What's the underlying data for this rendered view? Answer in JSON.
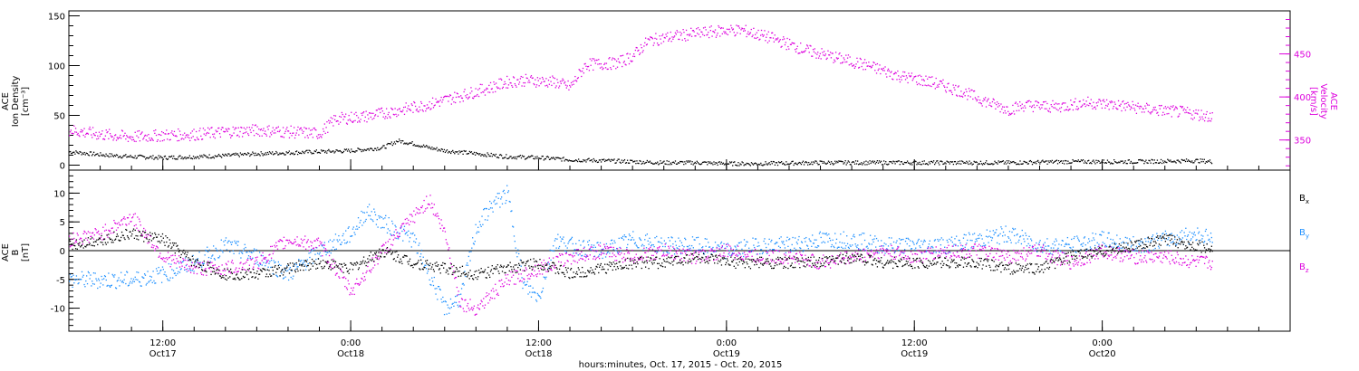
{
  "chart_data": [
    {
      "type": "scatter",
      "title": "",
      "xlabel": "hours:minutes, Oct. 17, 2015 - Oct. 20, 2015",
      "ylabel_left": [
        "ACE",
        "Ion Density",
        "[cm⁻³]"
      ],
      "ylabel_right": [
        "ACE",
        "Velocity",
        "[km/s]"
      ],
      "x_unit": "hours since Oct 17 00:00",
      "xlim": [
        6,
        84
      ],
      "ylim_left": [
        -5,
        155
      ],
      "ylim_right": [
        315,
        500
      ],
      "y_ticks_left": [
        0,
        50,
        100,
        150
      ],
      "y_ticks_right": [
        350,
        400,
        450
      ],
      "series": [
        {
          "name": "Ion Density",
          "axis": "left",
          "color": "#000000",
          "x": [
            6,
            8,
            10,
            12,
            14,
            16,
            18,
            20,
            22,
            24,
            26,
            27,
            28,
            29,
            30,
            32,
            34,
            36,
            38,
            40,
            42,
            44,
            46,
            48,
            50,
            54,
            58,
            62,
            66,
            70,
            74,
            78,
            79
          ],
          "y": [
            14,
            11,
            9,
            8,
            9,
            10,
            12,
            13,
            14,
            15,
            18,
            25,
            22,
            18,
            15,
            12,
            9,
            8,
            6,
            5,
            4,
            3,
            3,
            2,
            2,
            3,
            3,
            3,
            3,
            4,
            4,
            5,
            4
          ]
        },
        {
          "name": "Velocity",
          "axis": "right",
          "color": "#dd00dd",
          "x": [
            6,
            8,
            10,
            12,
            14,
            16,
            18,
            20,
            22,
            23,
            25,
            27,
            29,
            31,
            33,
            34,
            35,
            37,
            38,
            39,
            41,
            42,
            43,
            45,
            47,
            48,
            49,
            51,
            53,
            55,
            57,
            59,
            61,
            63,
            65,
            66,
            67,
            69,
            71,
            73,
            75,
            77,
            79
          ],
          "y": [
            362,
            357,
            354,
            356,
            357,
            360,
            362,
            360,
            358,
            375,
            378,
            385,
            392,
            402,
            412,
            418,
            420,
            418,
            412,
            438,
            440,
            448,
            466,
            472,
            476,
            478,
            478,
            468,
            455,
            446,
            437,
            425,
            418,
            407,
            392,
            386,
            391,
            389,
            394,
            391,
            386,
            383,
            378
          ]
        }
      ]
    },
    {
      "type": "scatter",
      "title": "",
      "xlabel": "hours:minutes, Oct. 17, 2015 - Oct. 20, 2015",
      "ylabel_left": [
        "ACE",
        "B",
        "[nT]"
      ],
      "x_unit": "hours since Oct 17 00:00",
      "xlim": [
        6,
        84
      ],
      "ylim": [
        -14,
        14
      ],
      "y_ticks": [
        -10,
        -5,
        0,
        5,
        10
      ],
      "zero_line": true,
      "series": [
        {
          "name": "Bx",
          "label_main": "B",
          "label_sub": "x",
          "color": "#000000",
          "x": [
            6,
            8,
            10,
            12,
            14,
            16,
            18,
            20,
            22,
            24,
            26,
            28,
            30,
            32,
            34,
            36,
            38,
            40,
            42,
            44,
            46,
            48,
            50,
            52,
            54,
            56,
            58,
            60,
            62,
            64,
            66,
            68,
            70,
            72,
            74,
            76,
            78,
            79
          ],
          "y": [
            1,
            2,
            3,
            2,
            -2,
            -4,
            -4,
            -3,
            -2,
            -3,
            0,
            -2,
            -3,
            -4,
            -3,
            -2,
            -4,
            -3,
            -2,
            -2,
            -1,
            -2,
            -2,
            -2,
            -2,
            -1,
            -2,
            -2,
            -2,
            -2,
            -3,
            -3,
            -1,
            0,
            1,
            2,
            1,
            0
          ]
        },
        {
          "name": "By",
          "label_main": "B",
          "label_sub": "y",
          "color": "#1e90ff",
          "x": [
            6,
            8,
            10,
            12,
            14,
            16,
            18,
            20,
            22,
            24,
            25,
            26,
            28,
            29,
            30,
            31,
            32,
            33,
            34,
            35,
            36,
            37,
            38,
            40,
            42,
            44,
            46,
            48,
            50,
            52,
            54,
            56,
            58,
            60,
            62,
            64,
            66,
            68,
            70,
            72,
            74,
            76,
            78,
            79
          ],
          "y": [
            -5,
            -5,
            -5,
            -4,
            -2,
            1,
            -1,
            -4,
            0,
            3,
            7,
            5,
            2,
            -4,
            -10,
            -8,
            4,
            8,
            10,
            -6,
            -8,
            2,
            1,
            0,
            2,
            1,
            1,
            0,
            1,
            1,
            2,
            2,
            1,
            1,
            1,
            2,
            3,
            1,
            1,
            2,
            1,
            2,
            3,
            2
          ]
        },
        {
          "name": "Bz",
          "label_main": "B",
          "label_sub": "z",
          "color": "#dd00dd",
          "x": [
            6,
            8,
            10,
            12,
            14,
            16,
            18,
            20,
            22,
            24,
            26,
            28,
            29,
            30,
            31,
            32,
            34,
            36,
            38,
            40,
            42,
            44,
            46,
            48,
            50,
            52,
            54,
            56,
            58,
            60,
            62,
            64,
            66,
            68,
            70,
            72,
            74,
            76,
            78,
            79
          ],
          "y": [
            2,
            3,
            6,
            -1,
            -3,
            -3,
            -2,
            2,
            1,
            -7,
            0,
            6,
            9,
            3,
            -9,
            -10,
            -5,
            -3,
            -1,
            0,
            -1,
            0,
            -1,
            0,
            -1,
            -1,
            -2,
            -1,
            0,
            -1,
            0,
            0,
            -1,
            0,
            -2,
            0,
            -1,
            -1,
            -2,
            -2
          ]
        }
      ]
    }
  ],
  "x_axis": {
    "ticks": [
      {
        "x": 12,
        "time": "12:00",
        "date": "Oct17"
      },
      {
        "x": 24,
        "time": "0:00",
        "date": "Oct18"
      },
      {
        "x": 36,
        "time": "12:00",
        "date": "Oct18"
      },
      {
        "x": 48,
        "time": "0:00",
        "date": "Oct19"
      },
      {
        "x": 60,
        "time": "12:00",
        "date": "Oct19"
      },
      {
        "x": 72,
        "time": "0:00",
        "date": "Oct20"
      }
    ]
  }
}
